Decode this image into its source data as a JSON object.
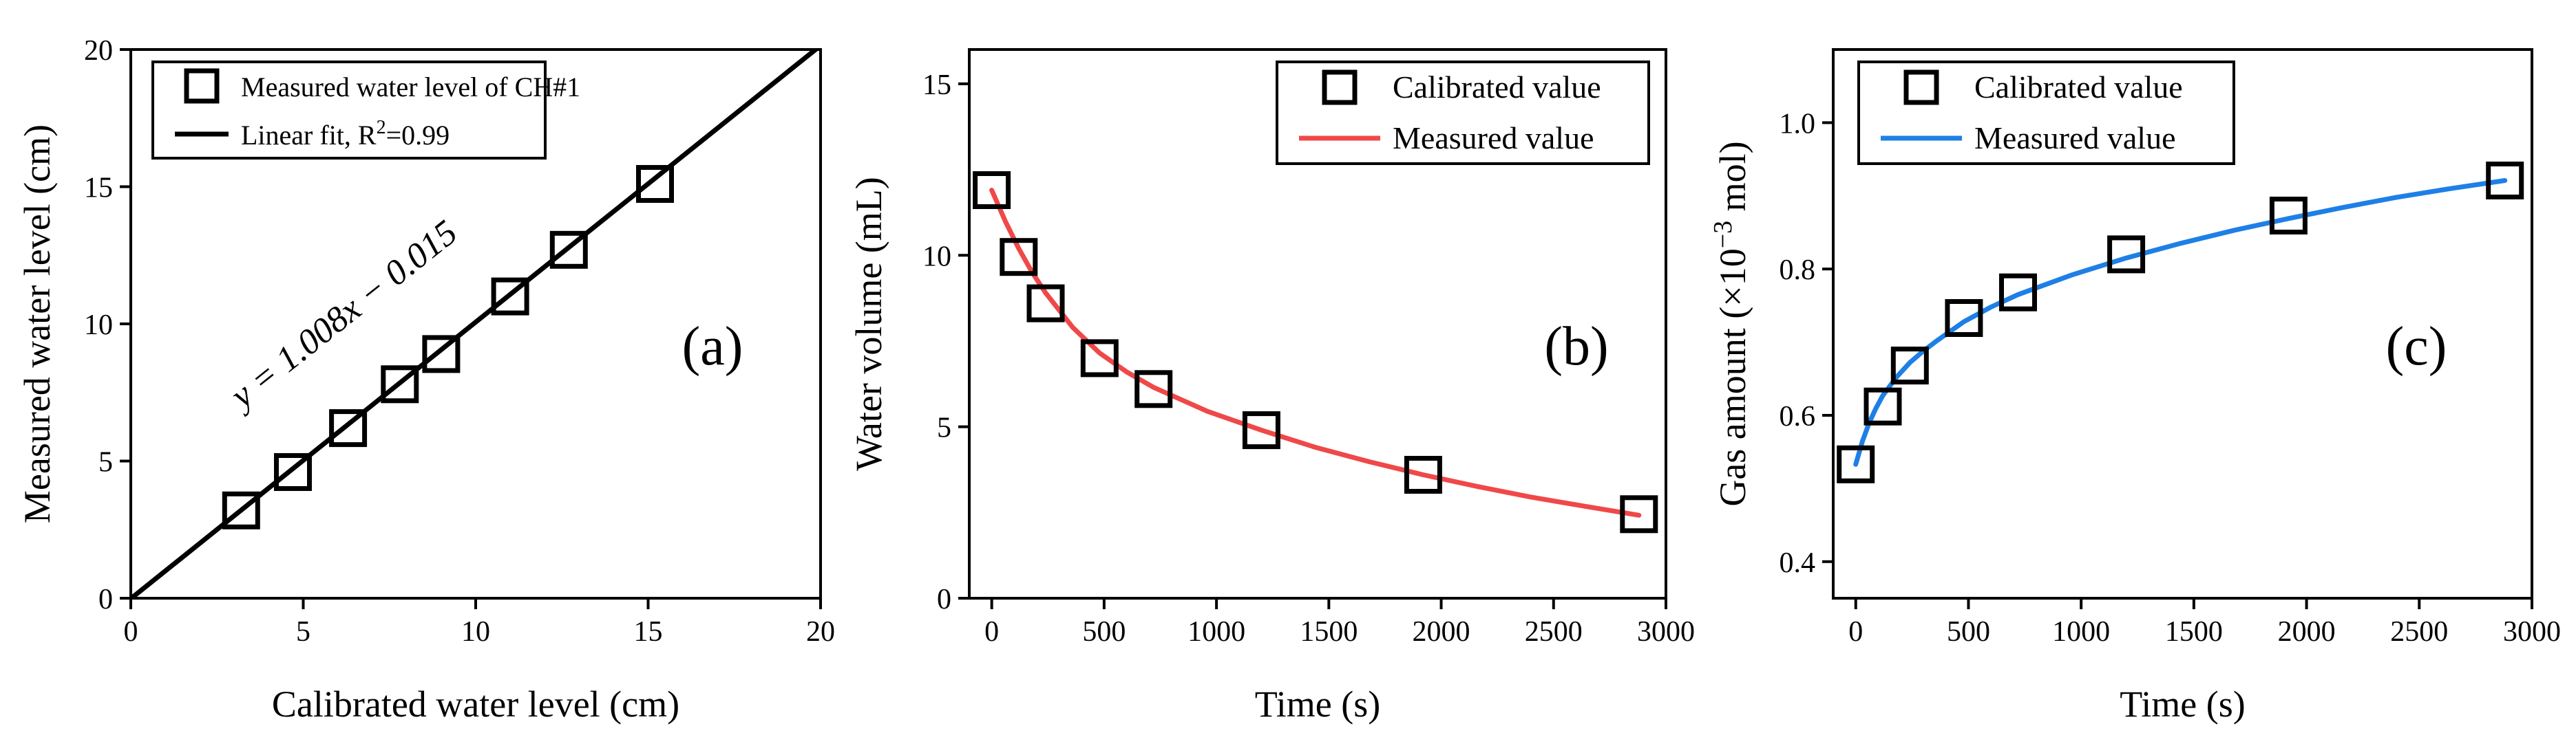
{
  "chart_data": [
    {
      "type": "scatter",
      "panel_label": "(a)",
      "xlabel": "Calibrated water level (cm)",
      "ylabel": "Measured water level (cm)",
      "xlim": [
        0,
        20
      ],
      "ylim": [
        0,
        20
      ],
      "xticks": [
        0,
        5,
        10,
        15,
        20
      ],
      "yticks": [
        0,
        5,
        10,
        15,
        20
      ],
      "legend_position": "top-left",
      "annotation": "y = 1.008x − 0.015",
      "series": [
        {
          "name": "Measured water level of CH#1",
          "kind": "markers",
          "marker": "open-square",
          "color": "#000000",
          "x": [
            3.2,
            4.7,
            6.3,
            7.8,
            9.0,
            11.0,
            12.7,
            15.2
          ],
          "y": [
            3.2,
            4.6,
            6.2,
            7.8,
            8.9,
            11.0,
            12.7,
            15.1
          ]
        },
        {
          "name": "Linear fit, R²=0.99",
          "name_parts": [
            "Linear fit, R",
            "2",
            "=0.99"
          ],
          "kind": "line",
          "color": "#000000",
          "x": [
            0,
            20
          ],
          "y": [
            -0.015,
            20.145
          ]
        }
      ]
    },
    {
      "type": "scatter",
      "panel_label": "(b)",
      "xlabel": "Time (s)",
      "ylabel": "Water volume (mL)",
      "xlim": [
        -100,
        3000
      ],
      "ylim": [
        0,
        16
      ],
      "xticks": [
        0,
        500,
        1000,
        1500,
        2000,
        2500,
        3000
      ],
      "yticks": [
        0,
        5,
        10,
        15
      ],
      "legend_position": "top-right",
      "series": [
        {
          "name": "Calibrated value",
          "kind": "markers",
          "marker": "open-square",
          "color": "#000000",
          "x": [
            0,
            120,
            240,
            480,
            720,
            1200,
            1920,
            2880
          ],
          "y": [
            11.9,
            9.95,
            8.6,
            7.0,
            6.1,
            4.9,
            3.6,
            2.45
          ]
        },
        {
          "name": "Measured value",
          "kind": "line",
          "color": "#f04848",
          "x": [
            0,
            60,
            120,
            180,
            240,
            360,
            480,
            600,
            720,
            960,
            1200,
            1440,
            1680,
            1920,
            2160,
            2400,
            2640,
            2880
          ],
          "y": [
            11.9,
            11.0,
            10.2,
            9.5,
            8.9,
            7.9,
            7.15,
            6.6,
            6.15,
            5.45,
            4.9,
            4.4,
            3.98,
            3.6,
            3.26,
            2.95,
            2.68,
            2.42
          ]
        }
      ]
    },
    {
      "type": "scatter",
      "panel_label": "(c)",
      "xlabel": "Time (s)",
      "ylabel_parts": [
        "Gas amount (×10",
        "−3",
        " mol)"
      ],
      "xlim": [
        -100,
        3000
      ],
      "ylim": [
        0.35,
        1.1
      ],
      "xticks": [
        0,
        500,
        1000,
        1500,
        2000,
        2500,
        3000
      ],
      "yticks": [
        0.4,
        0.6,
        0.8,
        1.0
      ],
      "ytick_labels": [
        "0.4",
        "0.6",
        "0.8",
        "1.0"
      ],
      "legend_position": "top-left",
      "series": [
        {
          "name": "Calibrated value",
          "kind": "markers",
          "marker": "open-square",
          "color": "#000000",
          "x": [
            0,
            120,
            240,
            480,
            720,
            1200,
            1920,
            2880
          ],
          "y": [
            0.533,
            0.612,
            0.668,
            0.733,
            0.768,
            0.82,
            0.873,
            0.921
          ]
        },
        {
          "name": "Measured value",
          "kind": "line",
          "color": "#1e7fe6",
          "x": [
            0,
            30,
            60,
            90,
            120,
            180,
            240,
            300,
            360,
            480,
            600,
            720,
            960,
            1200,
            1440,
            1680,
            1920,
            2160,
            2400,
            2640,
            2880
          ],
          "y": [
            0.533,
            0.565,
            0.59,
            0.61,
            0.627,
            0.652,
            0.672,
            0.688,
            0.702,
            0.728,
            0.748,
            0.765,
            0.792,
            0.815,
            0.835,
            0.853,
            0.869,
            0.884,
            0.898,
            0.91,
            0.921
          ]
        }
      ]
    }
  ]
}
